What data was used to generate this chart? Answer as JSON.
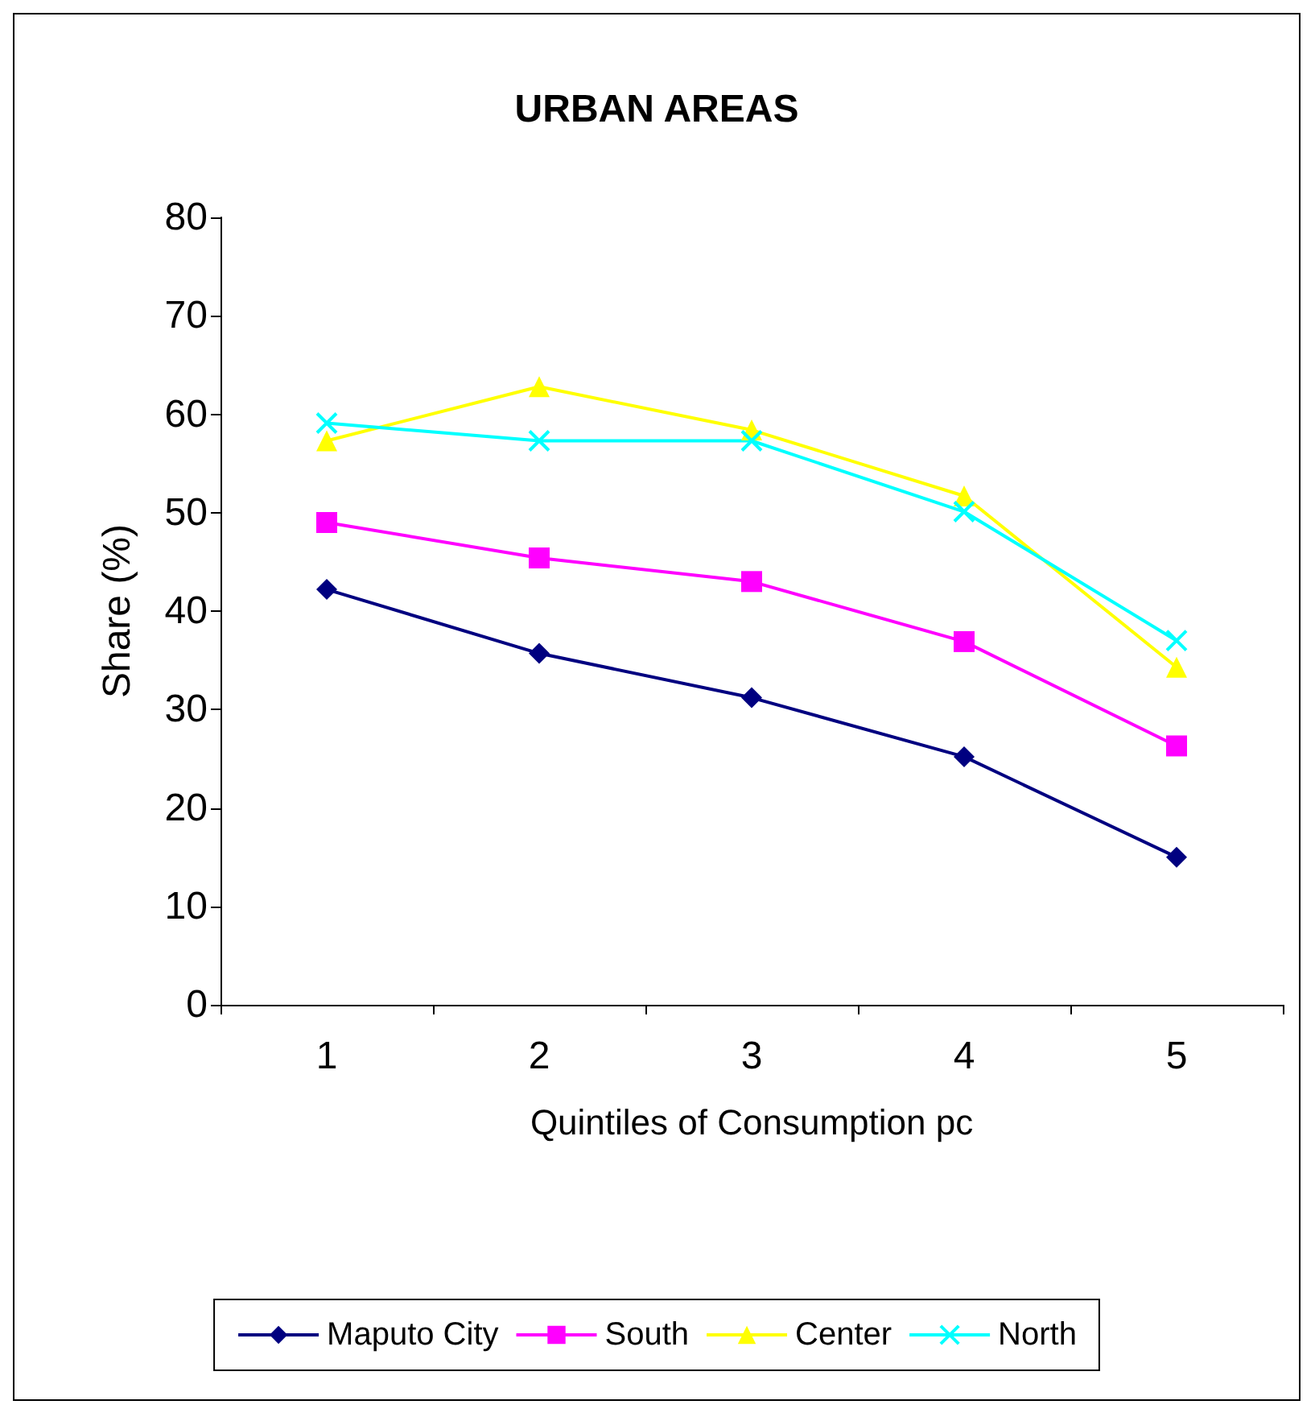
{
  "chart_data": {
    "type": "line",
    "title": "URBAN AREAS",
    "xlabel": "Quintiles of Consumption pc",
    "ylabel": "Share (%)",
    "categories": [
      "1",
      "2",
      "3",
      "4",
      "5"
    ],
    "series": [
      {
        "name": "Maputo City",
        "color": "#000080",
        "marker": "diamond",
        "values": [
          42.2,
          35.7,
          31.2,
          25.2,
          15.0
        ]
      },
      {
        "name": "South",
        "color": "#ff00ff",
        "marker": "square",
        "values": [
          49.0,
          45.4,
          43.0,
          36.9,
          26.3
        ]
      },
      {
        "name": "Center",
        "color": "#ffff00",
        "marker": "triangle",
        "values": [
          57.3,
          62.8,
          58.4,
          51.7,
          34.3
        ]
      },
      {
        "name": "North",
        "color": "#00ffff",
        "marker": "cross",
        "values": [
          59.1,
          57.3,
          57.3,
          50.1,
          37.0
        ]
      }
    ],
    "ylim": [
      0,
      80
    ],
    "yticks": [
      0,
      10,
      20,
      30,
      40,
      50,
      60,
      70,
      80
    ],
    "grid": false,
    "legend": "bottom"
  }
}
